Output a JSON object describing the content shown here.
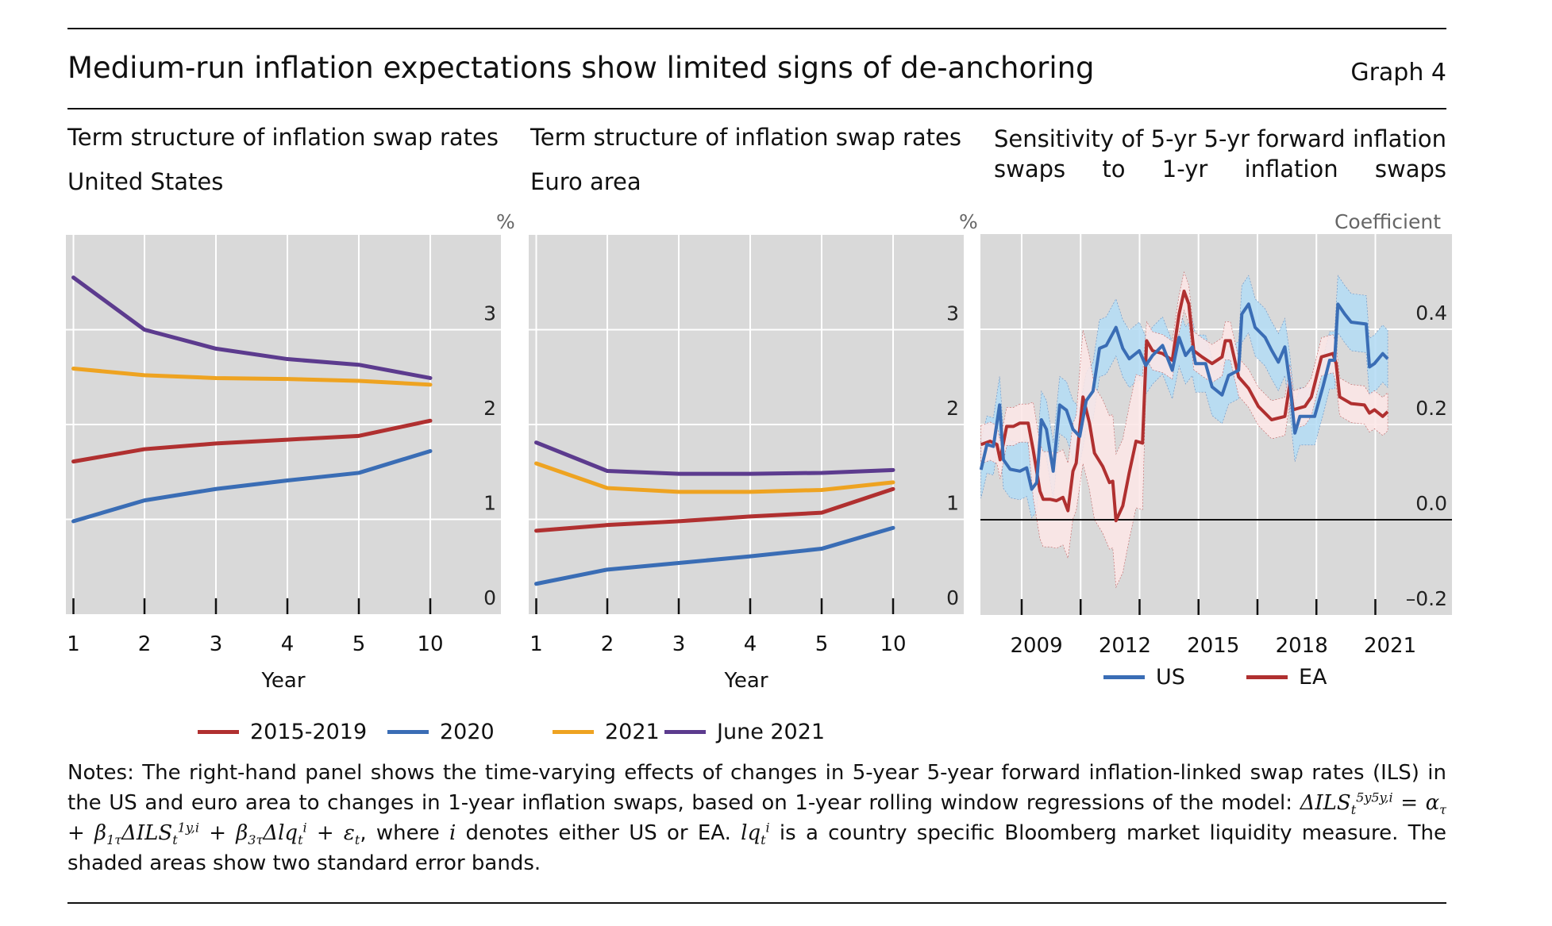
{
  "header": {
    "title": "Medium-run inflation expectations show limited signs of de-anchoring",
    "graph_label": "Graph 4"
  },
  "colors": {
    "2015-2019": "#b03030",
    "2020": "#3a6db5",
    "2021": "#eea321",
    "June 2021": "#5c3b8e",
    "US": "#3a6db5",
    "EA": "#b03030",
    "US_band": "#b3dcf5",
    "EA_band": "#fde6e6",
    "plot_bg": "#d9d9d9"
  },
  "chart_data": [
    {
      "type": "line",
      "title": "Term structure of inflation swap rates",
      "subtitle": "United States",
      "unit": "%",
      "xlabel": "Year",
      "categories": [
        "1",
        "2",
        "3",
        "4",
        "5",
        "10"
      ],
      "ylim": [
        0,
        4
      ],
      "yticks": [
        "0",
        "1",
        "2",
        "3"
      ],
      "grid": true,
      "series": [
        {
          "name": "2015-2019",
          "values": [
            1.61,
            1.74,
            1.8,
            1.84,
            1.88,
            2.04
          ]
        },
        {
          "name": "2020",
          "values": [
            0.98,
            1.2,
            1.32,
            1.41,
            1.49,
            1.72
          ]
        },
        {
          "name": "2021",
          "values": [
            2.59,
            2.52,
            2.49,
            2.48,
            2.46,
            2.42
          ]
        },
        {
          "name": "June 2021",
          "values": [
            3.55,
            3.0,
            2.8,
            2.69,
            2.63,
            2.49
          ]
        }
      ]
    },
    {
      "type": "line",
      "title": "Term structure of inflation swap rates",
      "subtitle": "Euro area",
      "unit": "%",
      "xlabel": "Year",
      "categories": [
        "1",
        "2",
        "3",
        "4",
        "5",
        "10"
      ],
      "ylim": [
        0,
        4
      ],
      "yticks": [
        "0",
        "1",
        "2",
        "3"
      ],
      "grid": true,
      "series": [
        {
          "name": "2015-2019",
          "values": [
            0.88,
            0.94,
            0.98,
            1.03,
            1.07,
            1.32
          ]
        },
        {
          "name": "2020",
          "values": [
            0.32,
            0.47,
            0.54,
            0.61,
            0.69,
            0.91
          ]
        },
        {
          "name": "2021",
          "values": [
            1.59,
            1.33,
            1.29,
            1.29,
            1.31,
            1.39
          ]
        },
        {
          "name": "June 2021",
          "values": [
            1.81,
            1.51,
            1.48,
            1.48,
            1.49,
            1.52
          ]
        }
      ]
    },
    {
      "type": "line",
      "title": "Sensitivity of 5-yr 5-yr forward inflation swaps to 1-yr inflation swaps",
      "unit": "Coefficient",
      "xlim": [
        2007.6,
        2023.6
      ],
      "xticklabels": [
        "2009",
        "2012",
        "2015",
        "2018",
        "2021"
      ],
      "ylim": [
        -0.2,
        0.6
      ],
      "yticks": [
        "–0.2",
        "0.0",
        "0.2",
        "0.4"
      ],
      "grid": true,
      "legend": "bottom",
      "series": [
        {
          "name": "US",
          "x": [
            2007.62,
            2007.82,
            2008.04,
            2008.25,
            2008.38,
            2008.61,
            2008.94,
            2009.17,
            2009.34,
            2009.51,
            2009.67,
            2009.84,
            2010.07,
            2010.29,
            2010.52,
            2010.74,
            2010.97,
            2011.19,
            2011.42,
            2011.64,
            2011.87,
            2012.2,
            2012.43,
            2012.65,
            2012.99,
            2013.21,
            2013.44,
            2013.78,
            2014.11,
            2014.34,
            2014.56,
            2014.79,
            2014.9,
            2015.24,
            2015.46,
            2015.8,
            2016.02,
            2016.36,
            2016.47,
            2016.7,
            2016.92,
            2017.26,
            2017.48,
            2017.71,
            2017.93,
            2018.1,
            2018.27,
            2018.44,
            2018.61,
            2018.94,
            2019.22,
            2019.45,
            2019.62,
            2019.73,
            2019.96,
            2020.18,
            2020.69,
            2020.8,
            2020.97,
            2021.25,
            2021.42
          ],
          "values": [
            0.105,
            0.158,
            0.154,
            0.241,
            0.126,
            0.106,
            0.102,
            0.109,
            0.064,
            0.078,
            0.21,
            0.19,
            0.102,
            0.241,
            0.23,
            0.19,
            0.175,
            0.25,
            0.27,
            0.36,
            0.366,
            0.404,
            0.36,
            0.338,
            0.355,
            0.324,
            0.345,
            0.366,
            0.314,
            0.383,
            0.345,
            0.363,
            0.328,
            0.328,
            0.279,
            0.262,
            0.303,
            0.314,
            0.432,
            0.453,
            0.404,
            0.383,
            0.356,
            0.331,
            0.363,
            0.286,
            0.182,
            0.217,
            0.217,
            0.217,
            0.279,
            0.335,
            0.335,
            0.453,
            0.432,
            0.415,
            0.411,
            0.321,
            0.328,
            0.349,
            0.338
          ],
          "band_half_width": 0.06
        },
        {
          "name": "EA",
          "x": [
            2007.62,
            2007.93,
            2008.16,
            2008.27,
            2008.49,
            2008.72,
            2008.94,
            2009.22,
            2009.39,
            2009.62,
            2009.73,
            2009.96,
            2010.18,
            2010.4,
            2010.57,
            2010.74,
            2010.85,
            2011.08,
            2011.3,
            2011.47,
            2011.75,
            2011.98,
            2012.09,
            2012.2,
            2012.43,
            2012.65,
            2012.88,
            2013.1,
            2013.24,
            2013.44,
            2013.78,
            2014.11,
            2014.34,
            2014.51,
            2014.67,
            2014.84,
            2015.12,
            2015.46,
            2015.8,
            2015.91,
            2016.08,
            2016.36,
            2016.7,
            2017.03,
            2017.48,
            2017.93,
            2018.1,
            2018.21,
            2018.61,
            2018.83,
            2019.17,
            2019.56,
            2019.67,
            2019.79,
            2020.18,
            2020.63,
            2020.8,
            2020.97,
            2021.25,
            2021.42
          ],
          "values": [
            0.158,
            0.165,
            0.158,
            0.126,
            0.196,
            0.196,
            0.203,
            0.203,
            0.147,
            0.06,
            0.043,
            0.043,
            0.04,
            0.047,
            0.019,
            0.102,
            0.119,
            0.258,
            0.203,
            0.14,
            0.112,
            0.078,
            0.081,
            -0.002,
            0.029,
            0.099,
            0.165,
            0.161,
            0.376,
            0.355,
            0.349,
            0.335,
            0.432,
            0.48,
            0.453,
            0.355,
            0.342,
            0.328,
            0.342,
            0.376,
            0.376,
            0.3,
            0.276,
            0.238,
            0.21,
            0.217,
            0.286,
            0.231,
            0.238,
            0.258,
            0.342,
            0.349,
            0.328,
            0.258,
            0.244,
            0.241,
            0.224,
            0.231,
            0.217,
            0.227
          ],
          "band_half_width": [
            0.04,
            0.04,
            0.04,
            0.04,
            0.04,
            0.04,
            0.04,
            0.04,
            0.1,
            0.1,
            0.1,
            0.1,
            0.1,
            0.1,
            0.1,
            0.1,
            0.1,
            0.14,
            0.14,
            0.14,
            0.14,
            0.14,
            0.14,
            0.14,
            0.14,
            0.14,
            0.14,
            0.14,
            0.04,
            0.04,
            0.04,
            0.04,
            0.04,
            0.04,
            0.04,
            0.04,
            0.04,
            0.04,
            0.04,
            0.04,
            0.04,
            0.04,
            0.04,
            0.04,
            0.04,
            0.04,
            0.04,
            0.04,
            0.04,
            0.04,
            0.04,
            0.04,
            0.04,
            0.04,
            0.04,
            0.04,
            0.04,
            0.04,
            0.04,
            0.04
          ]
        }
      ]
    }
  ],
  "legend_main": [
    "2015-2019",
    "2020",
    "2021",
    "June 2021"
  ],
  "notes": [
    {
      "t": "Notes: The right-hand panel shows the time-varying effects of changes in 5-year 5-year forward inflation-linked swap rates (ILS) in the US and euro area to changes in 1-year inflation swaps, based on 1-year rolling window regressions of the model: "
    },
    {
      "m": "ΔILS"
    },
    {
      "sub": "t"
    },
    {
      "sup": "5y5y,i"
    },
    {
      "m": " = α"
    },
    {
      "sub": "τ"
    },
    {
      "m": " + β"
    },
    {
      "sub": "1τ"
    },
    {
      "m": "ΔILS"
    },
    {
      "sub": "t"
    },
    {
      "sup": "1y,i"
    },
    {
      "m": " + β"
    },
    {
      "sub": "3τ"
    },
    {
      "m": "Δlq"
    },
    {
      "sub": "t"
    },
    {
      "sup": "i"
    },
    {
      "m": " + ε"
    },
    {
      "sub": "t"
    },
    {
      "t": ", where "
    },
    {
      "m": "i"
    },
    {
      "t": " denotes either US or EA. "
    },
    {
      "m": "lq"
    },
    {
      "sub": "t"
    },
    {
      "sup": "i"
    },
    {
      "t": " is a country specific Bloomberg market liquidity measure. The shaded areas show two standard error bands."
    }
  ]
}
